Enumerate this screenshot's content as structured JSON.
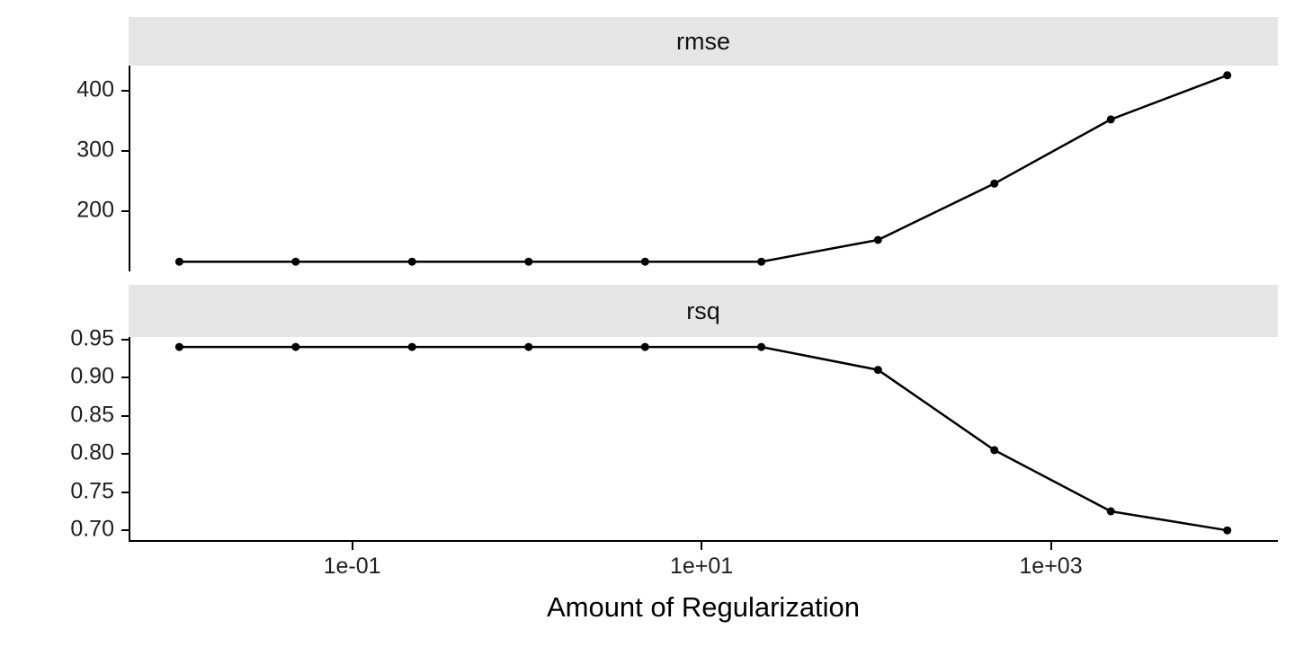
{
  "colors": {
    "line": "#000000",
    "point": "#000000",
    "strip_background": "#e5e5e5",
    "panel_background": "#ffffff",
    "axis_line": "#000000",
    "text": "#202020"
  },
  "chart_data": {
    "type": "line",
    "x_scale": "log10",
    "xlabel": "Amount of Regularization",
    "grid": "off",
    "legend": "none",
    "x": [
      0.01,
      0.0464,
      0.215,
      1,
      4.64,
      21.5,
      100,
      464,
      2154,
      10000
    ],
    "xticks": {
      "exponents": [
        -1,
        1,
        3
      ],
      "labels": [
        "1e-01",
        "1e+01",
        "1e+03"
      ]
    },
    "xlim_exponents": [
      -2.28,
      4.3
    ],
    "facets": [
      {
        "name": "rmse",
        "values": [
          117,
          117,
          117,
          117,
          117,
          117,
          153,
          246,
          352,
          425
        ],
        "yticks": [
          200,
          300,
          400
        ],
        "ytick_labels": [
          "200",
          "300",
          "400"
        ],
        "ylim": [
          101,
          441
        ]
      },
      {
        "name": "rsq",
        "values": [
          0.94,
          0.94,
          0.94,
          0.94,
          0.94,
          0.94,
          0.91,
          0.805,
          0.725,
          0.7
        ],
        "yticks": [
          0.7,
          0.75,
          0.8,
          0.85,
          0.9,
          0.95
        ],
        "ytick_labels": [
          "0.70",
          "0.75",
          "0.80",
          "0.85",
          "0.90",
          "0.95"
        ],
        "ylim": [
          0.685,
          0.953
        ]
      }
    ]
  }
}
